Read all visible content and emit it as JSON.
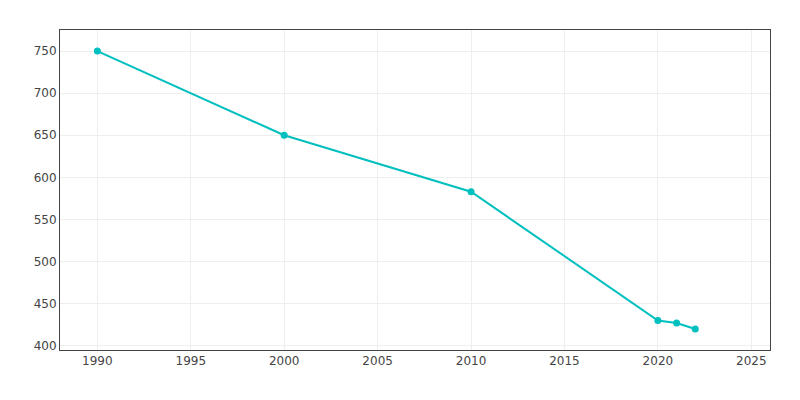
{
  "chart_data": {
    "type": "line",
    "x": [
      1990,
      2000,
      2010,
      2020,
      2021,
      2022
    ],
    "values": [
      750,
      650,
      583,
      430,
      427,
      420
    ],
    "color": "#00bfbf",
    "marker": "circle",
    "line_style": "solid",
    "xlim": [
      1988,
      2026
    ],
    "ylim": [
      395,
      775
    ],
    "xticks": [
      1990,
      1995,
      2000,
      2005,
      2010,
      2015,
      2020,
      2025
    ],
    "yticks": [
      400,
      450,
      500,
      550,
      600,
      650,
      700,
      750
    ],
    "grid": true
  }
}
